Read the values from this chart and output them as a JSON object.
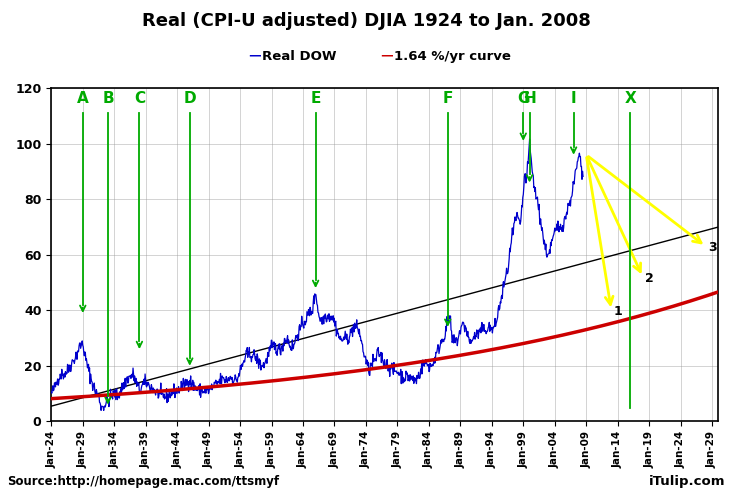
{
  "title": "Real (CPI-U adjusted) DJIA 1924 to Jan. 2008",
  "subtitle_blue": "Real DOW",
  "subtitle_red": "1.64 %/yr curve",
  "source_text": "Source:http://homepage.mac.com/ttsmyf",
  "itulip_text": "iTulip.com",
  "x_start": 1924,
  "x_end": 2030,
  "y_min": 0,
  "y_max": 120,
  "x_ticks": [
    1924,
    1929,
    1934,
    1939,
    1944,
    1949,
    1954,
    1959,
    1964,
    1969,
    1974,
    1979,
    1984,
    1989,
    1994,
    1999,
    2004,
    2009,
    2014,
    2019,
    2024,
    2029
  ],
  "x_tick_labels": [
    "Jan-24",
    "Jan-29",
    "Jan-34",
    "Jan-39",
    "Jan-44",
    "Jan-49",
    "Jan-54",
    "Jan-59",
    "Jan-64",
    "Jan-69",
    "Jan-74",
    "Jan-79",
    "Jan-84",
    "Jan-89",
    "Jan-94",
    "Jan-99",
    "Jan-04",
    "Jan-09",
    "Jan-14",
    "Jan-19",
    "Jan-24",
    "Jan-29"
  ],
  "growth_rate": 0.0164,
  "base_year": 1924,
  "base_value": 8.2,
  "arrow_labels": [
    "A",
    "B",
    "C",
    "D",
    "E",
    "F",
    "G",
    "H",
    "I",
    "X"
  ],
  "arrow_years": [
    1929,
    1933,
    1938,
    1946,
    1966,
    1987,
    1999,
    2000,
    2007,
    2016
  ],
  "arrow_tips": [
    38,
    5,
    25,
    19,
    47,
    33,
    100,
    85,
    95,
    -1
  ],
  "yellow_from_year": 2009,
  "yellow_from_value": 96,
  "yellow_targets": [
    {
      "year": 2013,
      "value": 40,
      "label": "1"
    },
    {
      "year": 2018,
      "value": 52,
      "label": "2"
    },
    {
      "year": 2028,
      "value": 63,
      "label": "3"
    }
  ],
  "trend_line": {
    "x1": 1924,
    "y1": 5.5,
    "x2": 2030,
    "y2": 70
  },
  "background_color": "#ffffff",
  "plot_bg_color": "#ffffff",
  "grid_color": "#999999",
  "dow_color": "#0000cc",
  "curve_color": "#cc0000",
  "arrow_color": "#00aa00",
  "yellow_color": "#ffff00"
}
